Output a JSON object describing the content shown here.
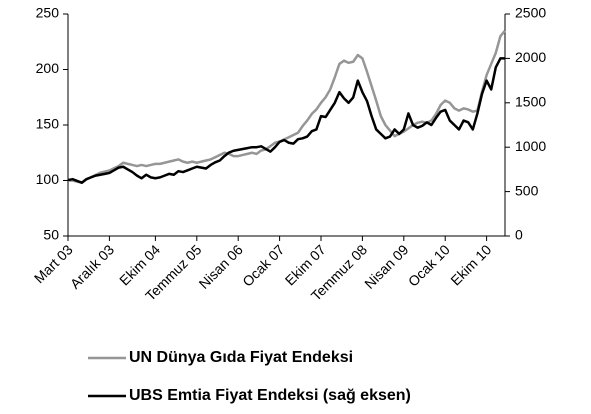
{
  "chart_data": {
    "type": "line",
    "categories": [
      "Mart 03",
      null,
      null,
      null,
      null,
      null,
      null,
      null,
      null,
      "Aralık 03",
      null,
      null,
      null,
      null,
      null,
      null,
      null,
      null,
      null,
      "Ekim 04",
      null,
      null,
      null,
      null,
      null,
      null,
      null,
      null,
      "Temmuz 05",
      null,
      null,
      null,
      null,
      null,
      null,
      null,
      null,
      "Nisan 06",
      null,
      null,
      null,
      null,
      null,
      null,
      null,
      null,
      "Ocak 07",
      null,
      null,
      null,
      null,
      null,
      null,
      null,
      null,
      "Ekim 07",
      null,
      null,
      null,
      null,
      null,
      null,
      null,
      null,
      "Temmuz 08",
      null,
      null,
      null,
      null,
      null,
      null,
      null,
      null,
      "Nisan 09",
      null,
      null,
      null,
      null,
      null,
      null,
      null,
      null,
      "Ocak 10",
      null,
      null,
      null,
      null,
      null,
      null,
      null,
      null,
      "Ekim 10",
      null,
      null,
      null,
      null
    ],
    "series": [
      {
        "name": "UN Dünya Gıda Fiyat Endeksi",
        "color": "#969696",
        "axis": "y",
        "values": [
          100,
          100,
          99,
          98,
          101,
          103,
          105,
          107,
          108,
          109,
          111,
          113,
          116,
          115,
          114,
          113,
          114,
          113,
          114,
          115,
          115,
          116,
          117,
          118,
          119,
          117,
          116,
          117,
          116,
          117,
          118,
          119,
          121,
          123,
          125,
          124,
          122,
          122,
          123,
          124,
          125,
          124,
          127,
          128,
          131,
          134,
          135,
          137,
          139,
          141,
          143,
          149,
          154,
          160,
          164,
          170,
          175,
          182,
          193,
          205,
          208,
          206,
          207,
          213,
          210,
          198,
          185,
          172,
          158,
          150,
          145,
          140,
          142,
          144,
          147,
          150,
          152,
          153,
          152,
          154,
          160,
          168,
          172,
          170,
          165,
          163,
          165,
          164,
          162,
          163,
          180,
          195,
          205,
          215,
          230,
          235
        ]
      },
      {
        "name": "UBS Emtia Fiyat Endeksi (sağ eksen)",
        "color": "#000000",
        "axis": "y2",
        "values": [
          630,
          640,
          620,
          600,
          640,
          660,
          680,
          690,
          700,
          710,
          740,
          770,
          780,
          750,
          720,
          680,
          650,
          690,
          660,
          650,
          660,
          680,
          700,
          690,
          730,
          720,
          740,
          760,
          780,
          770,
          760,
          800,
          830,
          850,
          900,
          940,
          960,
          970,
          980,
          990,
          1000,
          1000,
          1010,
          980,
          950,
          1000,
          1060,
          1080,
          1050,
          1040,
          1090,
          1100,
          1120,
          1180,
          1200,
          1350,
          1340,
          1420,
          1500,
          1620,
          1550,
          1500,
          1560,
          1750,
          1620,
          1520,
          1350,
          1200,
          1150,
          1100,
          1120,
          1200,
          1150,
          1200,
          1380,
          1250,
          1220,
          1240,
          1280,
          1250,
          1330,
          1400,
          1420,
          1300,
          1250,
          1200,
          1300,
          1280,
          1200,
          1380,
          1600,
          1750,
          1650,
          1900,
          2000,
          2000
        ]
      }
    ],
    "ylim": [
      50,
      250
    ],
    "yticks": [
      50,
      100,
      150,
      200,
      250
    ],
    "y2lim": [
      0,
      2500
    ],
    "y2ticks": [
      0,
      500,
      1000,
      1500,
      2000,
      2500
    ],
    "grid": false
  }
}
